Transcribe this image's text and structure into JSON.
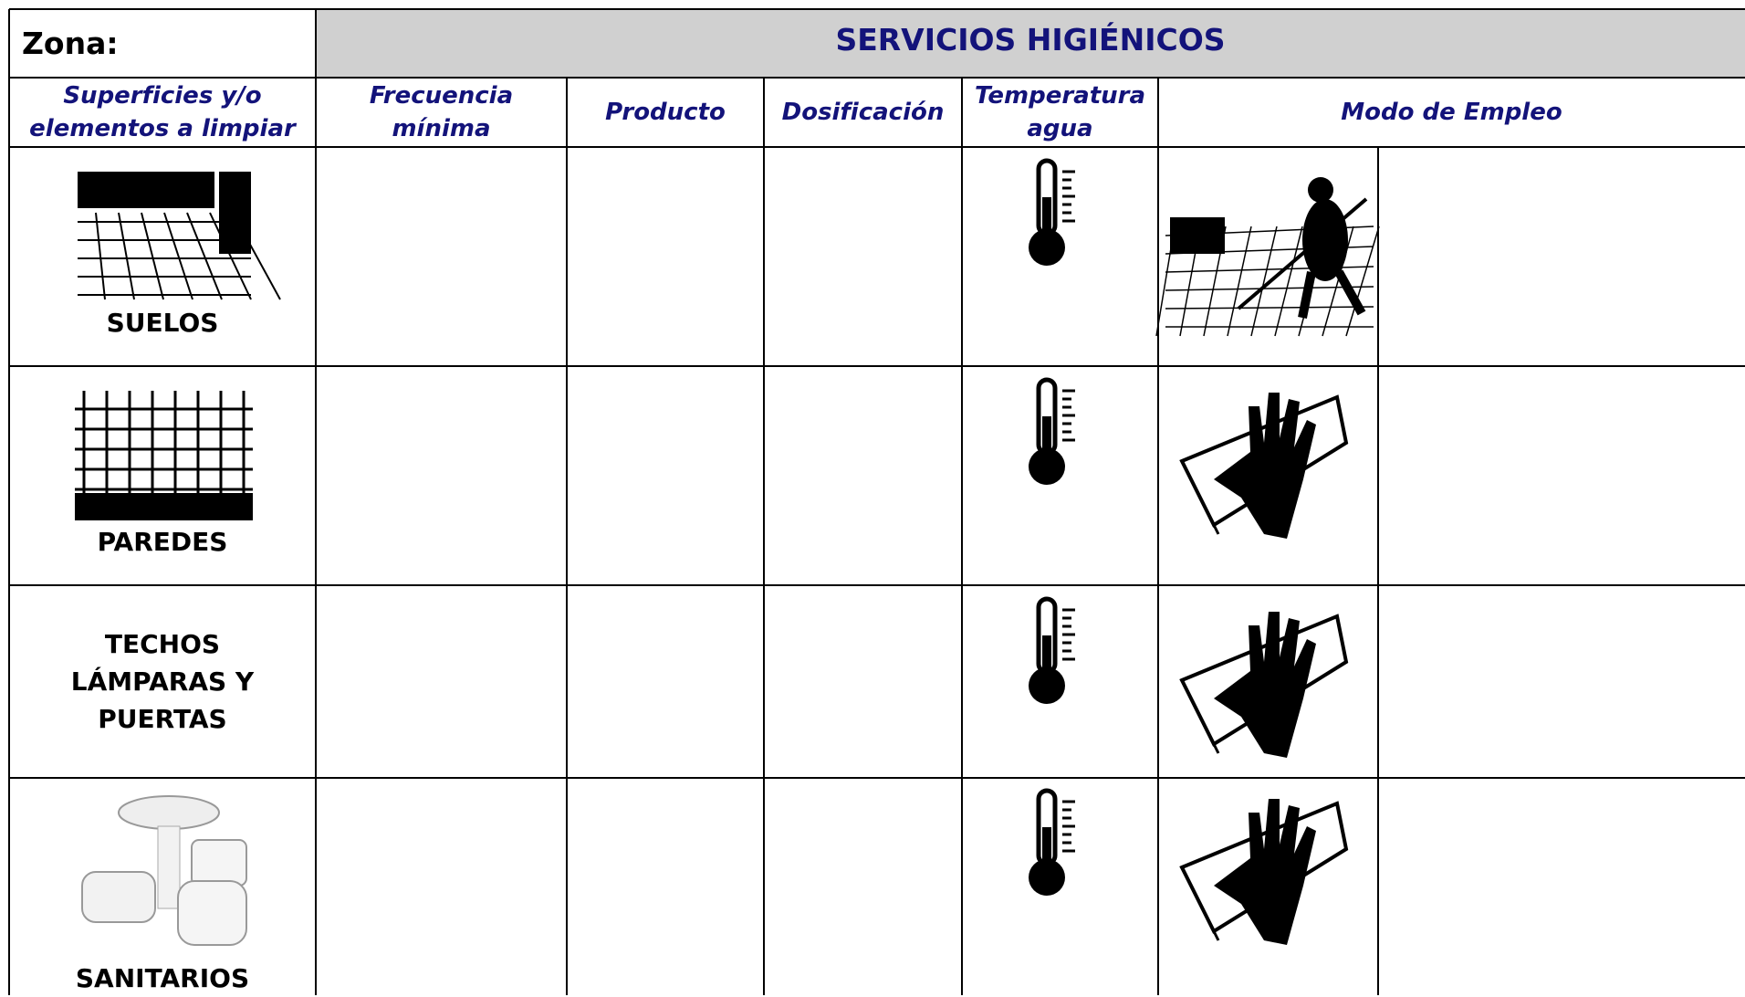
{
  "header": {
    "zona_label": "Zona:",
    "title": "SERVICIOS HIGIÉNICOS"
  },
  "table": {
    "columns": [
      "Superficies y/o elementos a limpiar",
      "Frecuencia mínima",
      "Producto",
      "Dosificación",
      "Temperatura agua",
      "Modo de Empleo"
    ],
    "rows": [
      {
        "label": "SUELOS"
      },
      {
        "label": "PAREDES"
      },
      {
        "label": "TECHOS LÁMPARAS Y PUERTAS"
      },
      {
        "label": "SANITARIOS"
      }
    ]
  }
}
